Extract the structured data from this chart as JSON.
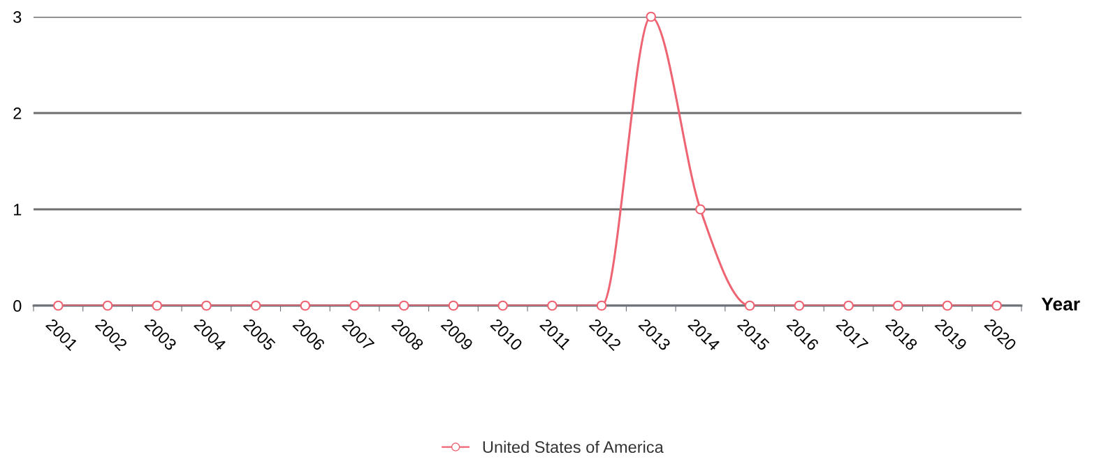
{
  "chart_data": {
    "type": "line",
    "xlabel": "Year",
    "categories": [
      "2001",
      "2002",
      "2003",
      "2004",
      "2005",
      "2006",
      "2007",
      "2008",
      "2009",
      "2010",
      "2011",
      "2012",
      "2013",
      "2014",
      "2015",
      "2016",
      "2017",
      "2018",
      "2019",
      "2020"
    ],
    "series": [
      {
        "name": "United States of America",
        "color": "#ee6473",
        "values": [
          0,
          0,
          0,
          0,
          0,
          0,
          0,
          0,
          0,
          0,
          0,
          0,
          3,
          1,
          0,
          0,
          0,
          0,
          0,
          0
        ]
      }
    ],
    "ylim": [
      0,
      3
    ],
    "yticks": [
      0,
      1,
      2,
      3
    ],
    "grid": "y",
    "legend": "bottom",
    "marker": "circle",
    "line_style": "solid"
  }
}
